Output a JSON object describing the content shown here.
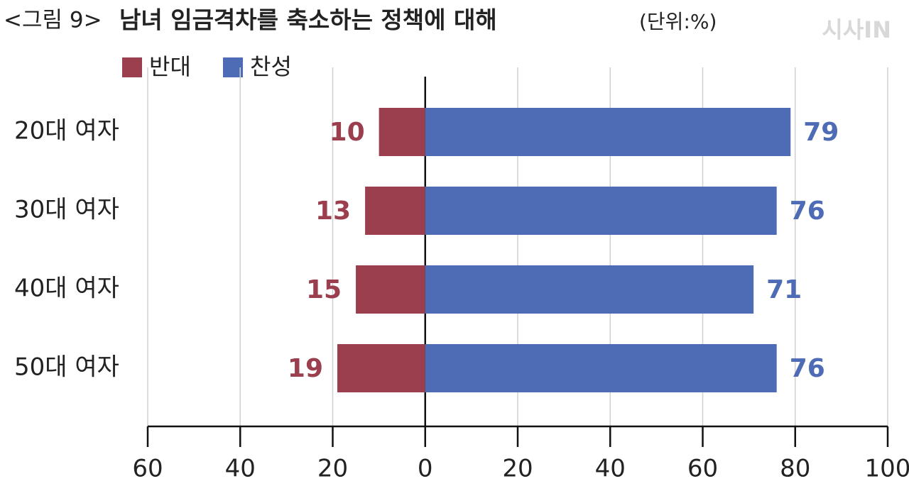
{
  "chart_data": {
    "type": "diverging_bar",
    "figure_label": "<그림 9>",
    "title": "남녀 임금격차를 축소하는 정책에 대해",
    "unit": "(단위:%)",
    "watermark": "시사IN",
    "categories": [
      "20대 여자",
      "30대 여자",
      "40대 여자",
      "50대 여자"
    ],
    "series": [
      {
        "name": "반대",
        "color": "#9b3f4e",
        "values": [
          -10,
          -13,
          -15,
          -19
        ],
        "value_labels": [
          "10",
          "13",
          "15",
          "19"
        ]
      },
      {
        "name": "찬성",
        "color": "#4e6bb5",
        "values": [
          79,
          76,
          71,
          76
        ]
      }
    ],
    "xlim": [
      -60,
      100
    ],
    "xticks": [
      {
        "value": -60,
        "label": "60"
      },
      {
        "value": -40,
        "label": "40"
      },
      {
        "value": -20,
        "label": "20"
      },
      0,
      20,
      40,
      60,
      80,
      100
    ],
    "grid": true
  }
}
